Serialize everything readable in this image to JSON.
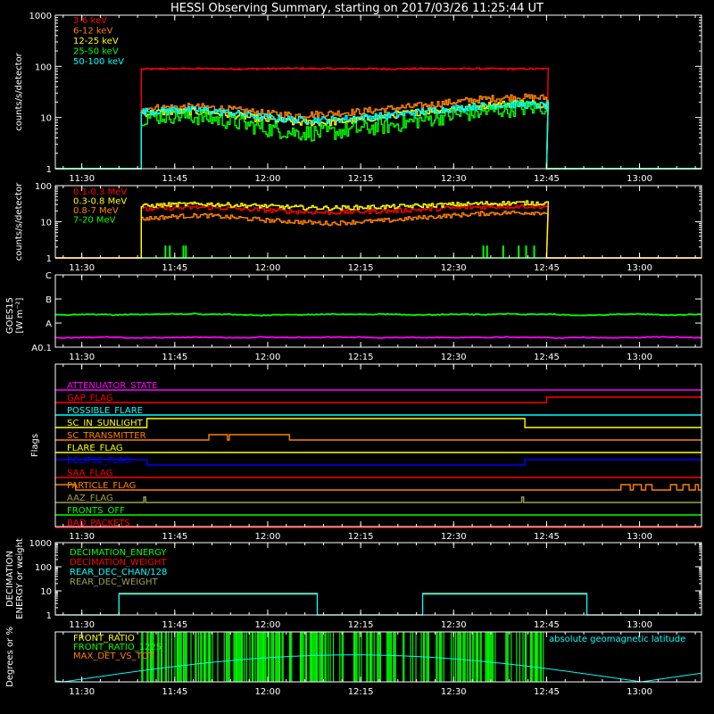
{
  "title": "HESSI Observing Summary, starting on 2017/03/26 11:25:44 UT",
  "colors": {
    "background": "#000000",
    "foreground": "#ffffff",
    "red": "#ff0000",
    "orange": "#ff8000",
    "yellow": "#ffff00",
    "green": "#00ff00",
    "cyan": "#00ffff",
    "magenta": "#ff00ff",
    "blue": "#0000ff",
    "olive": "#a0a050"
  },
  "time_ticks": [
    "11:30",
    "11:45",
    "12:00",
    "12:15",
    "12:30",
    "12:45",
    "13:00"
  ],
  "chart_data": [
    {
      "id": "xray",
      "type": "line",
      "ylabel": "counts/s/detector",
      "yscale": "log",
      "ylim": [
        1,
        1000
      ],
      "yticks": [
        "1",
        "10",
        "100",
        "1000"
      ],
      "data_window": [
        "11:39",
        "12:45"
      ],
      "series": [
        {
          "name": "3-6 keV",
          "color": "#ff0000",
          "level": [
            88,
            90,
            90,
            89,
            90,
            91,
            90,
            90,
            89,
            90,
            90,
            90,
            89,
            90
          ]
        },
        {
          "name": "6-12 keV",
          "color": "#ff8000",
          "level": [
            15,
            16,
            16,
            14,
            12,
            11,
            12,
            13,
            15,
            17,
            20,
            23,
            25,
            24
          ]
        },
        {
          "name": "12-25 keV",
          "color": "#ffff00",
          "level": [
            12,
            13,
            13,
            11,
            9,
            8,
            8,
            9,
            11,
            13,
            15,
            17,
            19,
            18
          ]
        },
        {
          "name": "25-50 keV",
          "color": "#00ff00",
          "level": [
            10,
            11,
            10,
            8,
            6,
            5,
            5,
            6,
            7,
            9,
            11,
            13,
            15,
            16
          ]
        },
        {
          "name": "50-100 keV",
          "color": "#00ffff",
          "level": [
            13,
            14,
            14,
            12,
            10,
            9,
            9,
            10,
            11,
            13,
            15,
            17,
            18,
            17
          ]
        }
      ]
    },
    {
      "id": "gamma",
      "type": "line",
      "ylabel": "counts/s/detector",
      "yscale": "log",
      "ylim": [
        1,
        100
      ],
      "yticks": [
        "1",
        "10",
        "100"
      ],
      "data_window": [
        "11:39",
        "12:45"
      ],
      "series": [
        {
          "name": "0.1-0.3 MeV",
          "color": "#ff0000",
          "level": [
            22,
            24,
            25,
            23,
            21,
            19,
            18,
            19,
            20,
            22,
            24,
            26,
            27,
            27
          ]
        },
        {
          "name": "0.3-0.8 MeV",
          "color": "#ffff00",
          "level": [
            27,
            30,
            31,
            29,
            27,
            25,
            24,
            25,
            26,
            28,
            30,
            32,
            33,
            33
          ]
        },
        {
          "name": "0.8-7 MeV",
          "color": "#ff8000",
          "level": [
            12,
            14,
            15,
            13,
            11,
            10,
            9,
            10,
            11,
            13,
            15,
            17,
            18,
            18
          ]
        },
        {
          "name": "7-20 MeV",
          "color": "#00ff00",
          "level": [
            1,
            1,
            1,
            1,
            1,
            1,
            1,
            1,
            1,
            1,
            1,
            1,
            1,
            1
          ]
        }
      ]
    },
    {
      "id": "goes",
      "type": "line",
      "ylabel": "GOES15",
      "ylabel_unit": "[W m⁻²]",
      "ylim_classes": [
        "A0.1",
        "A",
        "B",
        "C"
      ],
      "series": [
        {
          "name": "",
          "color": "#00ff00",
          "level_class": 1.35
        },
        {
          "name": "",
          "color": "#ff00ff",
          "level_class": 0.4
        }
      ]
    },
    {
      "id": "flags",
      "type": "table",
      "ylabel": "Flags",
      "rows": [
        {
          "name": "ATTENUATOR_STATE",
          "color": "#ff00ff"
        },
        {
          "name": "GAP_FLAG",
          "color": "#ff0000"
        },
        {
          "name": "POSSIBLE_FLARE",
          "color": "#00ffff"
        },
        {
          "name": "SC_IN_SUNLIGHT",
          "color": "#ffff00"
        },
        {
          "name": "SC_TRANSMITTER",
          "color": "#ff8000"
        },
        {
          "name": "FLARE_FLAG",
          "color": "#ffff00"
        },
        {
          "name": "ECLIPSE_FLAG",
          "color": "#0000ff"
        },
        {
          "name": "SAA_FLAG",
          "color": "#ff0000"
        },
        {
          "name": "PARTICLE_FLAG",
          "color": "#ff8000"
        },
        {
          "name": "AAZ_FLAG",
          "color": "#a0a050"
        },
        {
          "name": "FRONTS_OFF",
          "color": "#00ff00"
        },
        {
          "name": "BAD_PACKETS",
          "color": "#ff0000"
        }
      ]
    },
    {
      "id": "decimation",
      "type": "line",
      "ylabel": "DECIMATION",
      "ylabel2": "ENERGY or weight",
      "yscale": "log",
      "ylim": [
        1,
        1000
      ],
      "yticks": [
        "1",
        "10",
        "100",
        "1000"
      ],
      "series": [
        {
          "name": "DECIMATION_ENERGY",
          "color": "#00ff00"
        },
        {
          "name": "DECIMATION_WEIGHT",
          "color": "#ff0000"
        },
        {
          "name": "REAR_DEC_CHAN/128",
          "color": "#00ffff",
          "value": 8
        },
        {
          "name": "REAR_DEC_WEIGHT",
          "color": "#a0a050",
          "value": 8
        }
      ]
    },
    {
      "id": "ratios",
      "type": "line",
      "ylabel": "Degrees or %",
      "ylim": [
        0,
        100
      ],
      "series": [
        {
          "name": "FRONT_RATIO",
          "color": "#ffff00"
        },
        {
          "name": "FRONT_RATIO_1225",
          "color": "#00ff00"
        },
        {
          "name": "MAX_DET_VS_TOT",
          "color": "#ff8000"
        },
        {
          "name": "absolute geomagnetic latitude",
          "color": "#00ffff"
        }
      ]
    }
  ]
}
